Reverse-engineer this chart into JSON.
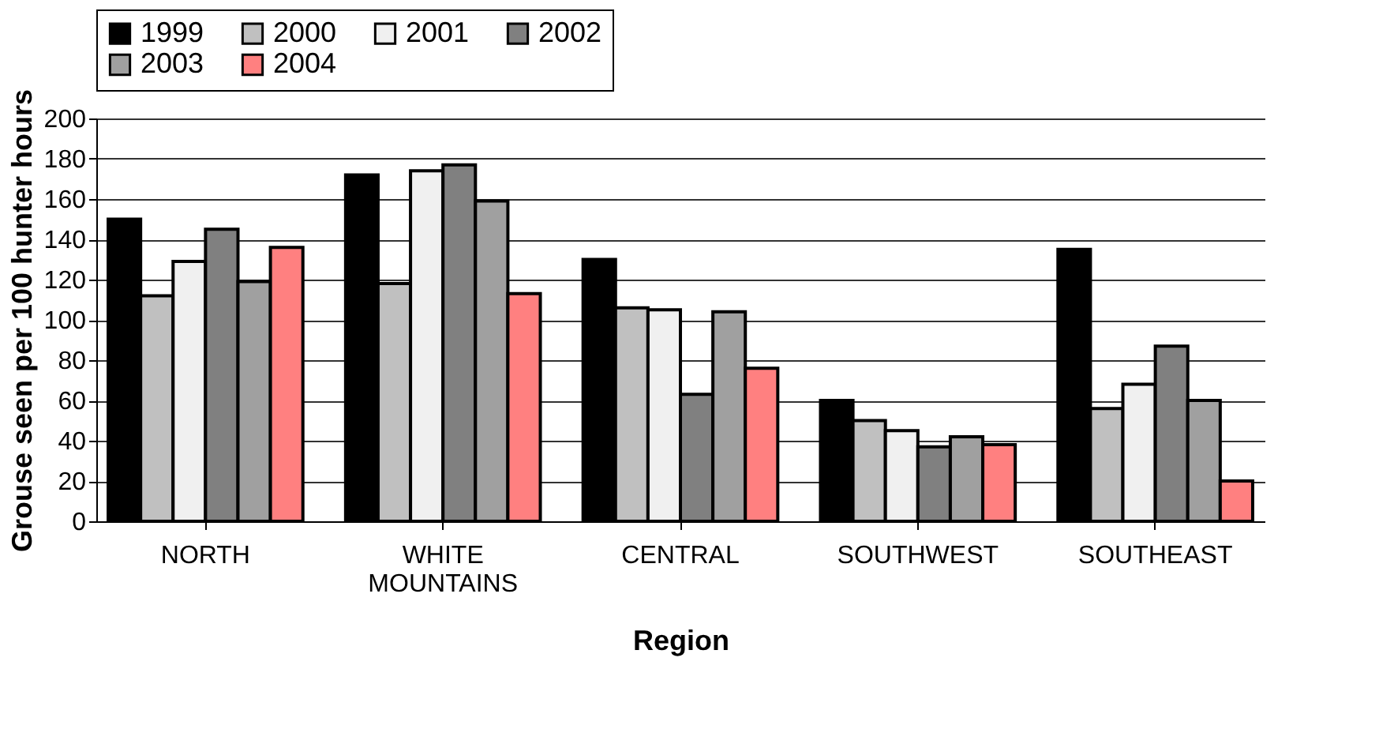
{
  "chart_data": {
    "type": "bar",
    "xlabel": "Region",
    "ylabel": "Grouse seen per 100 hunter hours",
    "categories": [
      "NORTH",
      "WHITE MOUNTAINS",
      "CENTRAL",
      "SOUTHWEST",
      "SOUTHEAST"
    ],
    "series": [
      {
        "name": "1999",
        "color": "#000000",
        "values": [
          150,
          172,
          130,
          60,
          135
        ]
      },
      {
        "name": "2000",
        "color": "#c0c0c0",
        "values": [
          112,
          118,
          106,
          50,
          56
        ]
      },
      {
        "name": "2001",
        "color": "#f0f0f0",
        "values": [
          129,
          174,
          105,
          45,
          68
        ]
      },
      {
        "name": "2002",
        "color": "#808080",
        "values": [
          145,
          177,
          63,
          37,
          87
        ]
      },
      {
        "name": "2003",
        "color": "#a0a0a0",
        "values": [
          119,
          159,
          104,
          42,
          60
        ]
      },
      {
        "name": "2004",
        "color": "#ff8080",
        "values": [
          136,
          113,
          76,
          38,
          20
        ]
      }
    ],
    "ylim": [
      0,
      200
    ],
    "yticks": [
      0,
      20,
      40,
      60,
      80,
      100,
      120,
      140,
      160,
      180,
      200
    ],
    "grid": "y",
    "legend": "top"
  }
}
